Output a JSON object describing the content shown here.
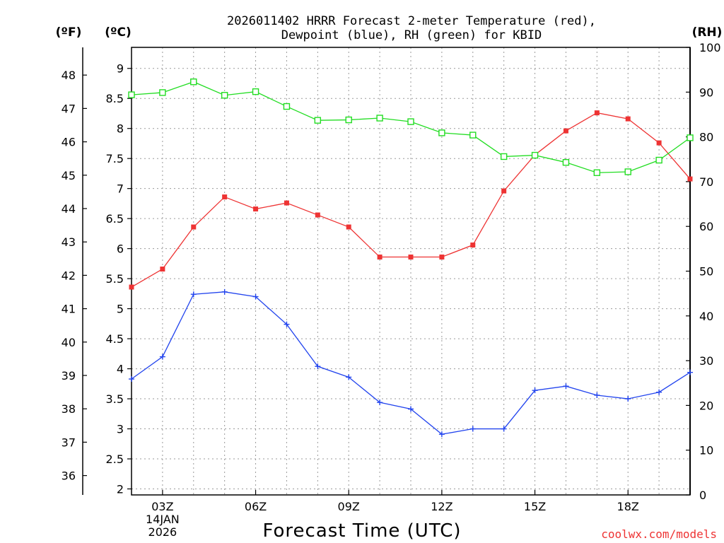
{
  "chart_data": {
    "type": "line",
    "title_lines": [
      "2026011402 HRRR Forecast 2-meter Temperature (red),",
      "Dewpoint (blue), RH (green) for KBID"
    ],
    "xlabel": "Forecast Time (UTC)",
    "credit": "coolwx.com/models",
    "x_hours": [
      2,
      3,
      4,
      5,
      6,
      7,
      8,
      9,
      10,
      11,
      12,
      13,
      14,
      15,
      16,
      17,
      18,
      19,
      20
    ],
    "x_range": [
      2,
      20
    ],
    "x_ticks": [
      {
        "hour": 3,
        "lines": [
          "03Z",
          "14JAN",
          "2026"
        ]
      },
      {
        "hour": 6,
        "lines": [
          "06Z"
        ]
      },
      {
        "hour": 9,
        "lines": [
          "09Z"
        ]
      },
      {
        "hour": 12,
        "lines": [
          "12Z"
        ]
      },
      {
        "hour": 15,
        "lines": [
          "15Z"
        ]
      },
      {
        "hour": 18,
        "lines": [
          "18Z"
        ]
      }
    ],
    "y_celsius": {
      "unit_label": "(ºC)",
      "range": [
        1.9,
        9.35
      ],
      "ticks": [
        2,
        2.5,
        3,
        3.5,
        4,
        4.5,
        5,
        5.5,
        6,
        6.5,
        7,
        7.5,
        8,
        8.5,
        9
      ],
      "tick_labels": [
        "2",
        "2.5",
        "3",
        "3.5",
        "4",
        "4.5",
        "5",
        "5.5",
        "6",
        "6.5",
        "7",
        "7.5",
        "8",
        "8.5",
        "9"
      ]
    },
    "y_fahrenheit": {
      "unit_label": "(ºF)",
      "ticks": [
        36,
        37,
        38,
        39,
        40,
        41,
        42,
        43,
        44,
        45,
        46,
        47,
        48
      ]
    },
    "y_rh": {
      "unit_label": "(RH)",
      "range": [
        0,
        100
      ],
      "ticks": [
        0,
        10,
        20,
        30,
        40,
        50,
        60,
        70,
        80,
        90,
        100
      ]
    },
    "series": [
      {
        "name": "Temperature",
        "color": "#ee3333",
        "axis": "celsius",
        "marker": "filled-square",
        "values": [
          5.36,
          5.66,
          6.36,
          6.86,
          6.66,
          6.76,
          6.56,
          6.36,
          5.86,
          5.86,
          5.86,
          6.06,
          6.96,
          7.56,
          7.96,
          8.26,
          8.16,
          7.76,
          7.16
        ]
      },
      {
        "name": "Dewpoint",
        "color": "#2244ee",
        "axis": "celsius",
        "marker": "plus",
        "values": [
          3.83,
          4.2,
          5.24,
          5.28,
          5.2,
          4.74,
          4.04,
          3.86,
          3.44,
          3.33,
          2.91,
          3.0,
          3.0,
          3.64,
          3.71,
          3.56,
          3.5,
          3.61,
          3.94
        ]
      },
      {
        "name": "RH",
        "color": "#22dd22",
        "axis": "rh",
        "marker": "open-square",
        "values": [
          89.4,
          89.9,
          92.3,
          89.3,
          90.1,
          86.8,
          83.7,
          83.8,
          84.2,
          83.4,
          80.9,
          80.4,
          75.6,
          75.9,
          74.3,
          72.0,
          72.2,
          74.8,
          79.8
        ]
      }
    ]
  }
}
